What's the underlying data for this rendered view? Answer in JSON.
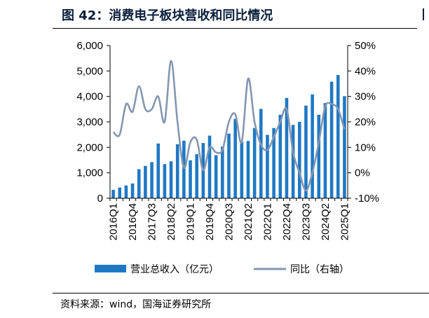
{
  "header": {
    "title": "图 42：消费电子板块营收和同比情况"
  },
  "footer": {
    "source": "资料来源：wind，国海证券研究所"
  },
  "colors": {
    "revenue_bars": "#1f78c4",
    "yoy_line": "#8596b0",
    "title": "#0a1e3c"
  },
  "chart_data": {
    "type": "bar",
    "title": "",
    "xlabel": "",
    "ylabel": "",
    "y_left": {
      "ylim": [
        0,
        6000
      ],
      "ticks": [
        0,
        1000,
        2000,
        3000,
        4000,
        5000,
        6000
      ],
      "tick_labels": [
        "0",
        "1,000",
        "2,000",
        "3,000",
        "4,000",
        "5,000",
        "6,000"
      ]
    },
    "y_right": {
      "ylim": [
        -10,
        50
      ],
      "ticks": [
        -10,
        0,
        10,
        20,
        30,
        40,
        50
      ],
      "tick_labels": [
        "-10%",
        "0%",
        "10%",
        "20%",
        "30%",
        "40%",
        "50%"
      ]
    },
    "grid": false,
    "legend_position": "bottom",
    "x_tick_labels": [
      "2016Q1",
      "2016Q4",
      "2017Q3",
      "2018Q2",
      "2019Q1",
      "2019Q4",
      "2020Q3",
      "2021Q2",
      "2022Q1",
      "2022Q4",
      "2023Q3",
      "2024Q2",
      "2025Q1"
    ],
    "categories": [
      "2016Q1",
      "2016Q2",
      "2016Q3",
      "2016Q4",
      "2017Q1",
      "2017Q2",
      "2017Q3",
      "2017Q4",
      "2018Q1",
      "2018Q2",
      "2018Q3",
      "2018Q4",
      "2019Q1",
      "2019Q2",
      "2019Q3",
      "2019Q4",
      "2020Q1",
      "2020Q2",
      "2020Q3",
      "2020Q4",
      "2021Q1",
      "2021Q2",
      "2021Q3",
      "2021Q4",
      "2022Q1",
      "2022Q2",
      "2022Q3",
      "2022Q4",
      "2023Q1",
      "2023Q2",
      "2023Q3",
      "2023Q4",
      "2024Q1",
      "2024Q2",
      "2024Q3",
      "2024Q4",
      "2025Q1"
    ],
    "series": [
      {
        "name": "营业总收入（亿元）",
        "type": "bar",
        "axis": "left",
        "values": [
          330,
          420,
          500,
          580,
          1140,
          1270,
          1420,
          2150,
          1340,
          1450,
          2120,
          2260,
          1490,
          1730,
          2170,
          2460,
          1690,
          2030,
          2540,
          3120,
          2220,
          2250,
          2760,
          3510,
          2490,
          2760,
          3280,
          3940,
          2880,
          3000,
          3640,
          4080,
          3280,
          3740,
          4580,
          4840,
          4010
        ]
      },
      {
        "name": "同比（右轴）",
        "type": "line",
        "axis": "right",
        "values": [
          16,
          15,
          27,
          24,
          34,
          25,
          25,
          30,
          20,
          44,
          20,
          2,
          12,
          13,
          1,
          10,
          8,
          9,
          20,
          23,
          12,
          37,
          20,
          11,
          9,
          14,
          20,
          25,
          8,
          0,
          -7,
          0,
          12,
          26,
          27,
          25,
          17
        ]
      }
    ]
  }
}
